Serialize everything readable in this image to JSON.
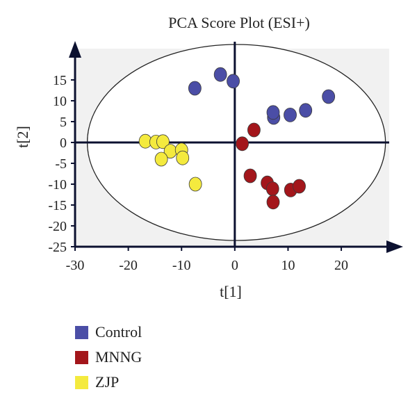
{
  "chart_data": {
    "type": "scatter",
    "title": "PCA Score Plot (ESI+)",
    "xlabel": "t[1]",
    "ylabel": "t[2]",
    "xlim": [
      -30,
      29
    ],
    "ylim": [
      -25,
      25
    ],
    "x_ticks": [
      -30,
      -20,
      -10,
      0,
      20
    ],
    "x_tick_labels": [
      "-30",
      "-20",
      "-10",
      "0",
      "20"
    ],
    "x_extra_tick": 10,
    "x_extra_tick_label": "10",
    "y_ticks": [
      15,
      10,
      5,
      0,
      -5,
      -10,
      -15,
      -20,
      -25
    ],
    "y_tick_labels": [
      "15",
      "10",
      "5",
      "0",
      "-5",
      "-10",
      "-15",
      "-20",
      "-25"
    ],
    "ellipse": {
      "cx": 0.3,
      "cy": 0,
      "rx": 28.0,
      "ry": 23.5
    },
    "plot_background": "#f1f1f1",
    "legend_position": "bottom-left",
    "series": [
      {
        "name": "Control",
        "color": "#4b4ea6",
        "points": [
          [
            -7.5,
            13
          ],
          [
            -2.7,
            16.3
          ],
          [
            -0.3,
            14.7
          ],
          [
            7.3,
            6
          ],
          [
            7.2,
            7.2
          ],
          [
            10.4,
            6.6
          ],
          [
            13.3,
            7.7
          ],
          [
            17.6,
            11
          ]
        ]
      },
      {
        "name": "MNNG",
        "color": "#a3161b",
        "points": [
          [
            3.6,
            3
          ],
          [
            1.4,
            -0.3
          ],
          [
            2.9,
            -8
          ],
          [
            6.1,
            -9.7
          ],
          [
            7.1,
            -11.1
          ],
          [
            7.2,
            -14.3
          ],
          [
            10.5,
            -11.4
          ],
          [
            12.1,
            -10.5
          ]
        ]
      },
      {
        "name": "ZJP",
        "color": "#f4ea3e",
        "points": [
          [
            -16.8,
            0.3
          ],
          [
            -14.8,
            0.1
          ],
          [
            -13.5,
            0.2
          ],
          [
            -12.1,
            -2.1
          ],
          [
            -10,
            -1.8
          ],
          [
            -13.8,
            -4
          ],
          [
            -9.8,
            -3.7
          ],
          [
            -7.4,
            -10
          ]
        ]
      }
    ]
  }
}
